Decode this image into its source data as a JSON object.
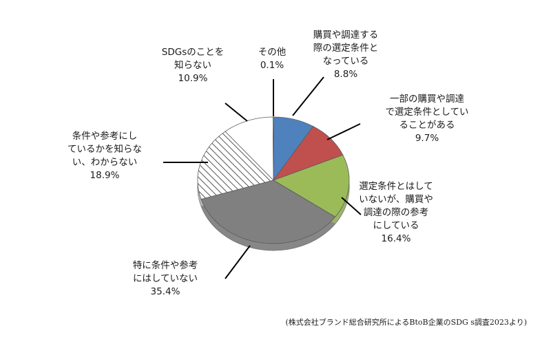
{
  "chart_data": {
    "type": "pie",
    "title": "",
    "start_angle_deg": 0,
    "direction": "clockwise",
    "slices": [
      {
        "label": [
          "購買や調達する",
          "際の選定条件と",
          "なっている"
        ],
        "value": 8.8,
        "display": "8.8%",
        "color": "#4f81bd",
        "pattern": "solid"
      },
      {
        "label": [
          "一部の購買や調達",
          "で選定条件としてい",
          "ることがある"
        ],
        "value": 9.7,
        "display": "9.7%",
        "color": "#c0504d",
        "pattern": "solid"
      },
      {
        "label": [
          "選定条件とはして",
          "いないが、購買や",
          "調達の際の参考",
          "にしている"
        ],
        "value": 16.4,
        "display": "16.4%",
        "color": "#9bbb59",
        "pattern": "solid"
      },
      {
        "label": [
          "特に条件や参考",
          "にはしていない"
        ],
        "value": 35.4,
        "display": "35.4%",
        "color": "#808080",
        "pattern": "solid"
      },
      {
        "label": [
          "条件や参考にし",
          "ているかを知らな",
          "い、わからない"
        ],
        "value": 18.9,
        "display": "18.9%",
        "color": "#ffffff",
        "pattern": "hatch"
      },
      {
        "label": [
          "SDGsのことを",
          "知らない"
        ],
        "value": 10.9,
        "display": "10.9%",
        "color": "#ffffff",
        "pattern": "solid"
      },
      {
        "label": [
          "その他"
        ],
        "value": 0.1,
        "display": "0.1%",
        "color": "#ffffff",
        "pattern": "solid"
      }
    ],
    "source": "(株式会社ブランド総合研究所によるBtoB企業のSDG s調査2023より)"
  }
}
